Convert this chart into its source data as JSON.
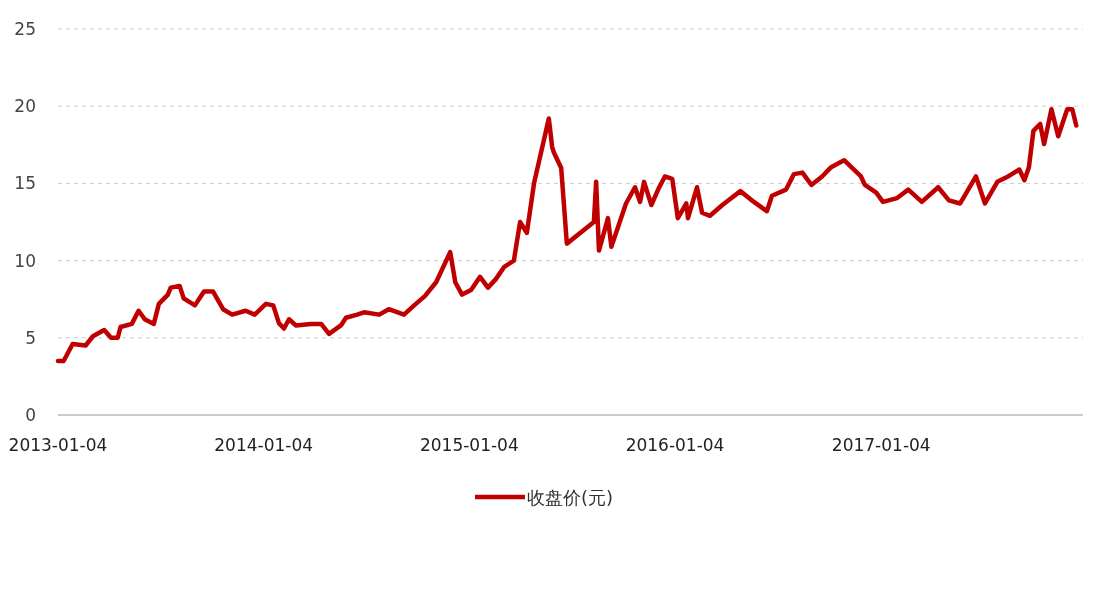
{
  "chart_data": {
    "type": "line",
    "x": [
      "2013-01-04",
      "2013-01-14",
      "2013-01-30",
      "2013-02-22",
      "2013-03-07",
      "2013-03-27",
      "2013-04-08",
      "2013-04-20",
      "2013-04-25",
      "2013-05-15",
      "2013-05-27",
      "2013-06-07",
      "2013-06-23",
      "2013-07-02",
      "2013-07-18",
      "2013-07-23",
      "2013-08-08",
      "2013-08-15",
      "2013-09-04",
      "2013-09-20",
      "2013-10-06",
      "2013-10-24",
      "2013-11-09",
      "2013-12-03",
      "2013-12-19",
      "2014-01-08",
      "2014-01-21",
      "2014-01-31",
      "2014-02-09",
      "2014-02-18",
      "2014-03-02",
      "2014-03-29",
      "2014-04-16",
      "2014-04-30",
      "2014-05-21",
      "2014-05-30",
      "2014-06-19",
      "2014-07-01",
      "2014-07-28",
      "2014-08-14",
      "2014-09-10",
      "2014-09-28",
      "2014-10-17",
      "2014-11-06",
      "2014-12-01",
      "2014-12-10",
      "2014-12-22",
      "2015-01-07",
      "2015-01-23",
      "2015-02-06",
      "2015-02-20",
      "2015-03-07",
      "2015-03-24",
      "2015-04-04",
      "2015-04-16",
      "2015-04-29",
      "2015-05-15",
      "2015-05-25",
      "2015-05-31",
      "2015-06-03",
      "2015-06-16",
      "2015-06-26",
      "2015-08-13",
      "2015-08-17",
      "2015-08-22",
      "2015-09-07",
      "2015-09-13",
      "2015-10-09",
      "2015-10-25",
      "2015-11-03",
      "2015-11-10",
      "2015-11-23",
      "2015-12-05",
      "2015-12-17",
      "2015-12-30",
      "2016-01-09",
      "2016-01-24",
      "2016-01-27",
      "2016-02-12",
      "2016-02-21",
      "2016-03-06",
      "2016-03-28",
      "2016-04-29",
      "2016-05-23",
      "2016-06-15",
      "2016-06-24",
      "2016-07-19",
      "2016-08-02",
      "2016-08-17",
      "2016-09-02",
      "2016-09-21",
      "2016-10-07",
      "2016-10-30",
      "2016-11-29",
      "2016-12-06",
      "2016-12-26",
      "2017-01-07",
      "2017-02-01",
      "2017-02-21",
      "2017-03-17",
      "2017-04-15",
      "2017-05-04",
      "2017-05-24",
      "2017-06-21",
      "2017-07-07",
      "2017-07-29",
      "2017-08-17",
      "2017-09-06",
      "2017-09-15",
      "2017-09-23",
      "2017-10-01",
      "2017-10-13",
      "2017-10-20",
      "2017-11-02",
      "2017-11-14",
      "2017-11-30",
      "2017-12-09",
      "2017-12-16"
    ],
    "series": [
      {
        "name": "收盘价(元)",
        "color": "#c00000",
        "values": [
          3.5,
          3.5,
          4.6,
          4.5,
          5.1,
          5.5,
          5.0,
          5.0,
          5.7,
          5.9,
          6.75,
          6.2,
          5.9,
          7.2,
          7.8,
          8.25,
          8.35,
          7.55,
          7.1,
          8.0,
          8.0,
          6.85,
          6.5,
          6.75,
          6.5,
          7.2,
          7.1,
          5.95,
          5.6,
          6.2,
          5.8,
          5.9,
          5.9,
          5.25,
          5.8,
          6.3,
          6.5,
          6.65,
          6.5,
          6.85,
          6.5,
          7.1,
          7.7,
          8.6,
          10.55,
          8.6,
          7.8,
          8.1,
          8.95,
          8.25,
          8.8,
          9.6,
          10.0,
          12.5,
          11.8,
          15.05,
          17.6,
          19.2,
          17.35,
          17.0,
          16.0,
          11.1,
          12.5,
          15.1,
          10.65,
          12.75,
          10.9,
          13.7,
          14.75,
          13.8,
          15.1,
          13.6,
          14.6,
          15.45,
          15.3,
          12.75,
          13.7,
          12.75,
          14.75,
          13.1,
          12.9,
          13.6,
          14.5,
          13.8,
          13.2,
          14.2,
          14.6,
          15.6,
          15.7,
          14.9,
          15.45,
          16.05,
          16.5,
          15.45,
          14.9,
          14.4,
          13.8,
          14.05,
          14.6,
          13.8,
          14.75,
          13.9,
          13.7,
          15.45,
          13.7,
          15.1,
          15.45,
          15.9,
          15.2,
          16.05,
          18.4,
          18.85,
          17.55,
          19.8,
          18.05,
          19.8,
          19.8,
          18.75
        ]
      }
    ],
    "xlim": [
      "2013-01-04",
      "2017-12-28"
    ],
    "xticks": [
      "2013-01-04",
      "2014-01-04",
      "2015-01-04",
      "2016-01-04",
      "2017-01-04"
    ],
    "ylim": [
      0,
      25
    ],
    "yticks": [
      0,
      5,
      10,
      15,
      20,
      25
    ],
    "grid": "y",
    "legend": "bottom",
    "line_style": "solid",
    "marker": "none"
  }
}
